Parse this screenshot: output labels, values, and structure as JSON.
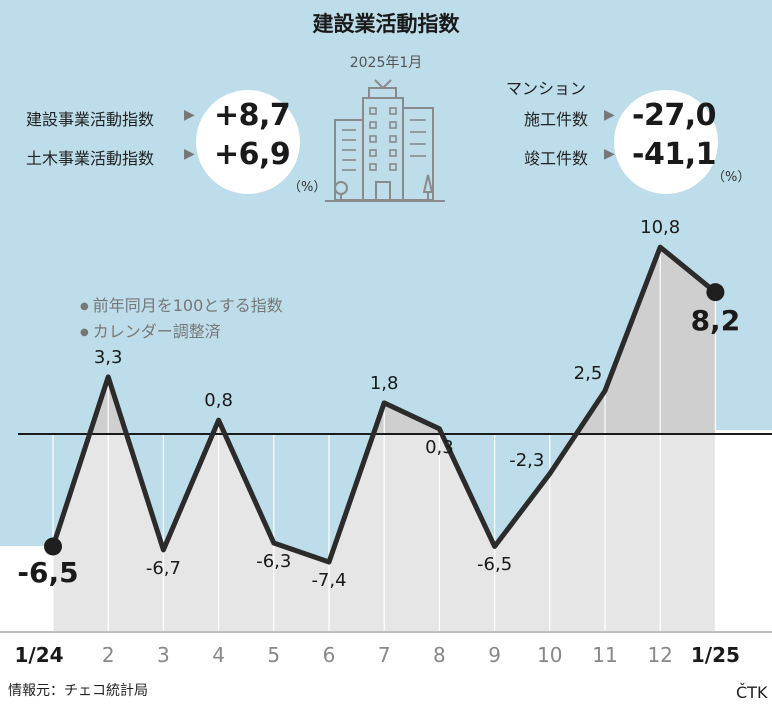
{
  "title": "建設業活動指数",
  "date": "2025年1月",
  "left_panel": {
    "rows": [
      {
        "label": "建設事業活動指数",
        "value": "+8,7"
      },
      {
        "label": "土木事業活動指数",
        "value": "+6,9"
      }
    ],
    "unit": "（%）"
  },
  "right_panel": {
    "heading": "マンション",
    "rows": [
      {
        "label": "施工件数",
        "value": "-27,0"
      },
      {
        "label": "竣工件数",
        "value": "-41,1"
      }
    ],
    "unit": "（%）"
  },
  "notes": [
    "前年同月を100とする指数",
    "カレンダー調整済"
  ],
  "colors": {
    "sky": "#bcdde9",
    "area_light": "#e6e6e6",
    "area_dark": "#cfcfcf",
    "line": "#2b2b2b"
  },
  "icons": [
    "arrow-right-icon",
    "building-icon"
  ],
  "chart_data": {
    "type": "line",
    "categories": [
      "1/24",
      "2",
      "3",
      "4",
      "5",
      "6",
      "7",
      "8",
      "9",
      "10",
      "11",
      "12",
      "1/25"
    ],
    "values": [
      -6.5,
      3.3,
      -6.7,
      0.8,
      -6.3,
      -7.4,
      1.8,
      0.3,
      -6.5,
      -2.3,
      2.5,
      10.8,
      8.2
    ],
    "value_labels": [
      "-6,5",
      "3,3",
      "-6,7",
      "0,8",
      "-6,3",
      "-7,4",
      "1,8",
      "0,3",
      "-6,5",
      "-2,3",
      "2,5",
      "10,8",
      "8,2"
    ],
    "baseline": 0,
    "ylim": [
      -10,
      13
    ],
    "title": "",
    "xlabel": "",
    "ylabel": ""
  },
  "source": "情報元：チェコ統計局",
  "credit": "ČTK"
}
